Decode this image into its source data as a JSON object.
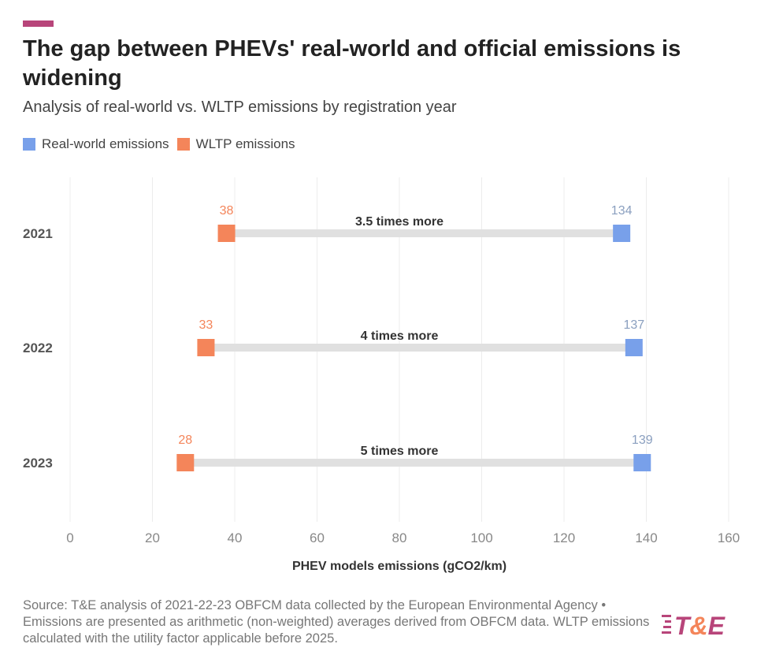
{
  "title": "The gap between PHEVs' real-world and official emissions is widening",
  "subtitle": "Analysis of real-world vs. WLTP emissions by registration year",
  "legend": [
    {
      "label": "Real-world emissions",
      "color": "#78a0ea"
    },
    {
      "label": "WLTP emissions",
      "color": "#f4855a"
    }
  ],
  "source": "Source: T&E analysis of 2021-22-23 OBFCM data collected by the European Environmental Agency • Emissions are presented as arithmetic (non-weighted) averages derived from OBFCM data. WLTP emissions calculated with the utility factor applicable before 2025.",
  "logo_text": "T&E",
  "colors": {
    "accent": "#b8457a",
    "real": "#78a0ea",
    "wltp": "#f4855a",
    "connector": "#e0e0e0"
  },
  "chart_data": {
    "type": "dumbbell",
    "categories": [
      "2021",
      "2022",
      "2023"
    ],
    "series": [
      {
        "name": "Real-world emissions",
        "values": [
          134,
          137,
          139
        ]
      },
      {
        "name": "WLTP emissions",
        "values": [
          38,
          33,
          28
        ]
      }
    ],
    "annotations": [
      "3.5 times more",
      "4 times more",
      "5 times more"
    ],
    "xlabel": "PHEV models emissions (gCO2/km)",
    "xlim": [
      0,
      160
    ],
    "xticks": [
      0,
      20,
      40,
      60,
      80,
      100,
      120,
      140,
      160
    ],
    "grid": "vertical",
    "legend": "top-left"
  }
}
